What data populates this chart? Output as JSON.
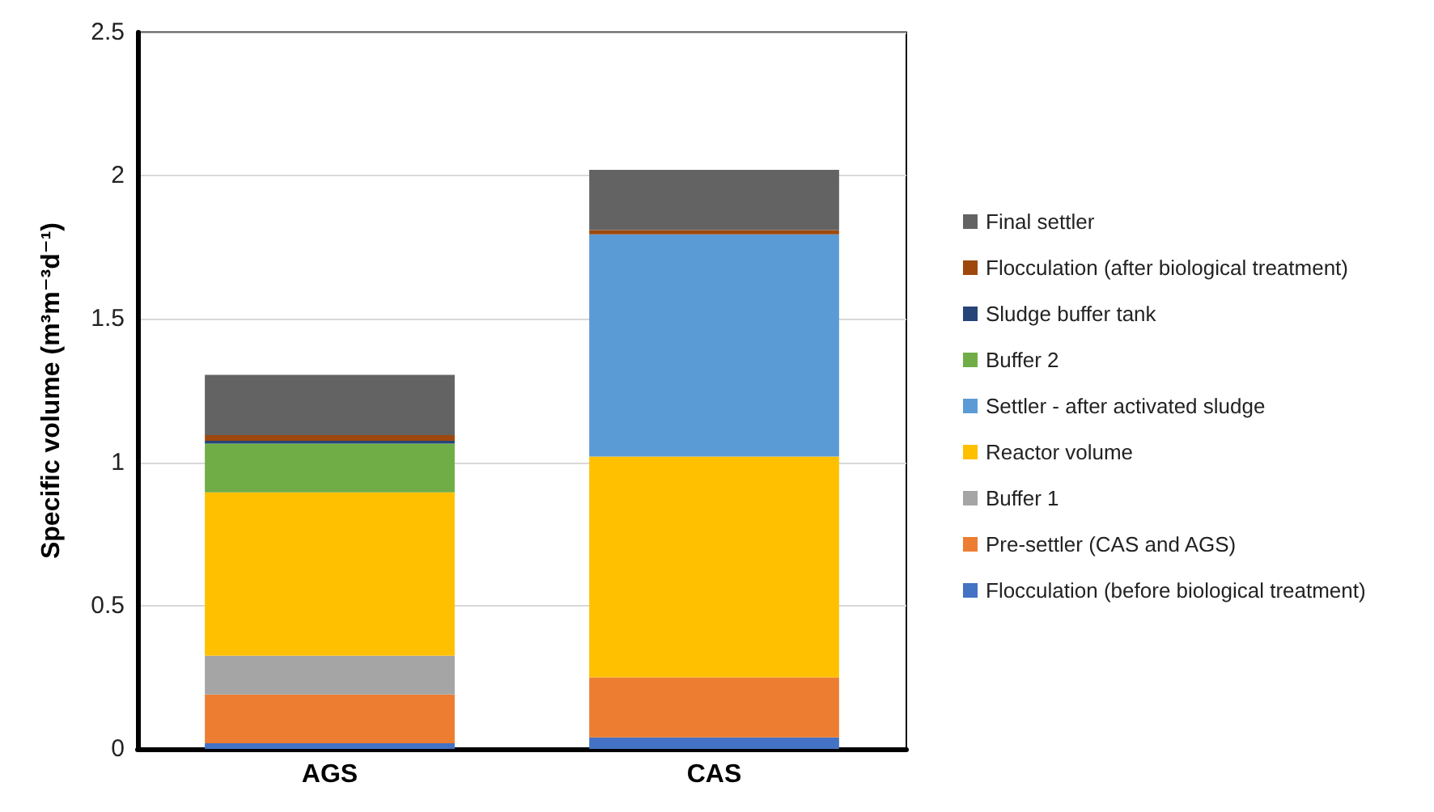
{
  "chart_data": {
    "type": "bar",
    "stacked": true,
    "ylabel": "Specific volume (m³m⁻³d⁻¹)",
    "categories": [
      "AGS",
      "CAS"
    ],
    "series": [
      {
        "name": "Flocculation (before biological treatment)",
        "color": "#4472c4",
        "values": [
          0.02,
          0.04
        ]
      },
      {
        "name": "Pre-settler (CAS and AGS)",
        "color": "#ed7d31",
        "values": [
          0.17,
          0.21
        ]
      },
      {
        "name": "Buffer 1",
        "color": "#a5a5a5",
        "values": [
          0.135,
          0
        ]
      },
      {
        "name": "Reactor volume",
        "color": "#ffc000",
        "values": [
          0.57,
          0.77
        ]
      },
      {
        "name": "Settler - after activated sludge",
        "color": "#5b9bd5",
        "values": [
          0,
          0.775
        ]
      },
      {
        "name": "Buffer 2",
        "color": "#70ad47",
        "values": [
          0.17,
          0
        ]
      },
      {
        "name": "Sludge buffer tank",
        "color": "#264478",
        "values": [
          0.01,
          0
        ]
      },
      {
        "name": "Flocculation (after biological treatment)",
        "color": "#9e480e",
        "values": [
          0.02,
          0.015
        ]
      },
      {
        "name": "Final settler",
        "color": "#636363",
        "values": [
          0.21,
          0.21
        ]
      }
    ],
    "ylim": [
      0,
      2.5
    ],
    "yticks": [
      0,
      0.5,
      1,
      1.5,
      2,
      2.5
    ],
    "grid": "y",
    "legend": "right"
  }
}
